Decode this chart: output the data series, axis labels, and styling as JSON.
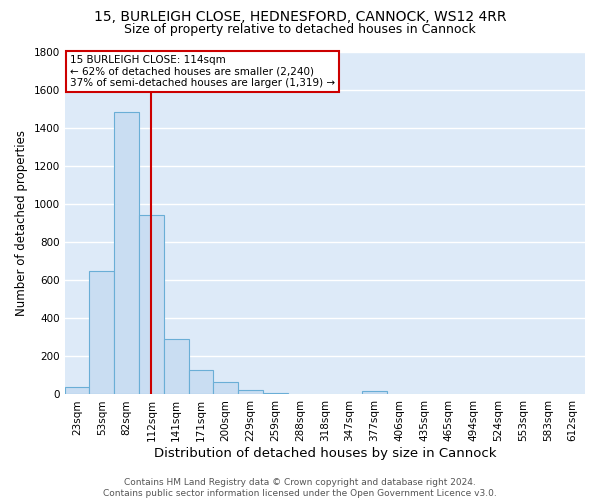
{
  "title1": "15, BURLEIGH CLOSE, HEDNESFORD, CANNOCK, WS12 4RR",
  "title2": "Size of property relative to detached houses in Cannock",
  "xlabel": "Distribution of detached houses by size in Cannock",
  "ylabel": "Number of detached properties",
  "categories": [
    "23sqm",
    "53sqm",
    "82sqm",
    "112sqm",
    "141sqm",
    "171sqm",
    "200sqm",
    "229sqm",
    "259sqm",
    "288sqm",
    "318sqm",
    "347sqm",
    "377sqm",
    "406sqm",
    "435sqm",
    "465sqm",
    "494sqm",
    "524sqm",
    "553sqm",
    "583sqm",
    "612sqm"
  ],
  "values": [
    40,
    650,
    1480,
    940,
    290,
    130,
    65,
    22,
    10,
    5,
    3,
    2,
    18,
    5,
    1,
    1,
    1,
    1,
    1,
    1,
    5
  ],
  "bar_color": "#c9ddf2",
  "bar_edge_color": "#6aaed6",
  "vline_x_index": 3,
  "vline_color": "#cc0000",
  "annotation_text": "15 BURLEIGH CLOSE: 114sqm\n← 62% of detached houses are smaller (2,240)\n37% of semi-detached houses are larger (1,319) →",
  "annotation_box_color": "#ffffff",
  "annotation_box_edge_color": "#cc0000",
  "ylim": [
    0,
    1800
  ],
  "yticks": [
    0,
    200,
    400,
    600,
    800,
    1000,
    1200,
    1400,
    1600,
    1800
  ],
  "background_color": "#ddeaf8",
  "grid_color": "#ffffff",
  "fig_background": "#ffffff",
  "footer": "Contains HM Land Registry data © Crown copyright and database right 2024.\nContains public sector information licensed under the Open Government Licence v3.0.",
  "title1_fontsize": 10,
  "title2_fontsize": 9,
  "xlabel_fontsize": 9.5,
  "ylabel_fontsize": 8.5,
  "tick_fontsize": 7.5,
  "footer_fontsize": 6.5
}
